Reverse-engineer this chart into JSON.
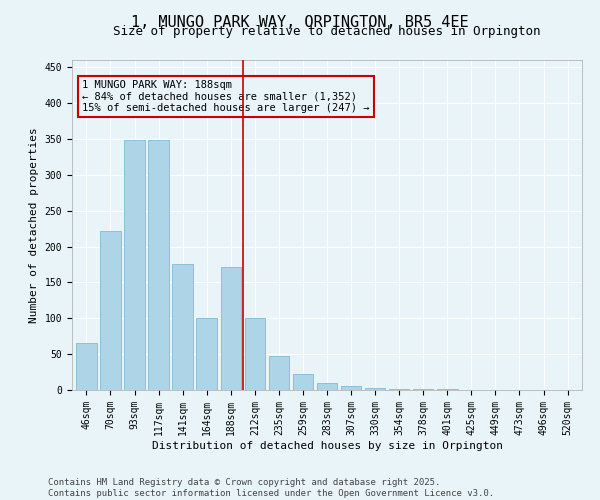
{
  "title": "1, MUNGO PARK WAY, ORPINGTON, BR5 4EE",
  "subtitle": "Size of property relative to detached houses in Orpington",
  "xlabel": "Distribution of detached houses by size in Orpington",
  "ylabel": "Number of detached properties",
  "categories": [
    "46sqm",
    "70sqm",
    "93sqm",
    "117sqm",
    "141sqm",
    "164sqm",
    "188sqm",
    "212sqm",
    "235sqm",
    "259sqm",
    "283sqm",
    "307sqm",
    "330sqm",
    "354sqm",
    "378sqm",
    "401sqm",
    "425sqm",
    "449sqm",
    "473sqm",
    "496sqm",
    "520sqm"
  ],
  "values": [
    65,
    222,
    348,
    348,
    175,
    100,
    172,
    100,
    48,
    22,
    10,
    5,
    3,
    2,
    1,
    1,
    0,
    0,
    0,
    0,
    0
  ],
  "bar_color": "#aed4e8",
  "bar_edgecolor": "#7fbcd6",
  "vline_index": 6.5,
  "vline_color": "#cc0000",
  "annotation_text": "1 MUNGO PARK WAY: 188sqm\n← 84% of detached houses are smaller (1,352)\n15% of semi-detached houses are larger (247) →",
  "annotation_box_color": "#cc0000",
  "ylim": [
    0,
    460
  ],
  "yticks": [
    0,
    50,
    100,
    150,
    200,
    250,
    300,
    350,
    400,
    450
  ],
  "footer": "Contains HM Land Registry data © Crown copyright and database right 2025.\nContains public sector information licensed under the Open Government Licence v3.0.",
  "bg_color": "#e8f4f8",
  "grid_color": "#ffffff",
  "title_fontsize": 11,
  "subtitle_fontsize": 9,
  "label_fontsize": 8,
  "tick_fontsize": 7,
  "annotation_fontsize": 7.5,
  "footer_fontsize": 6.5
}
